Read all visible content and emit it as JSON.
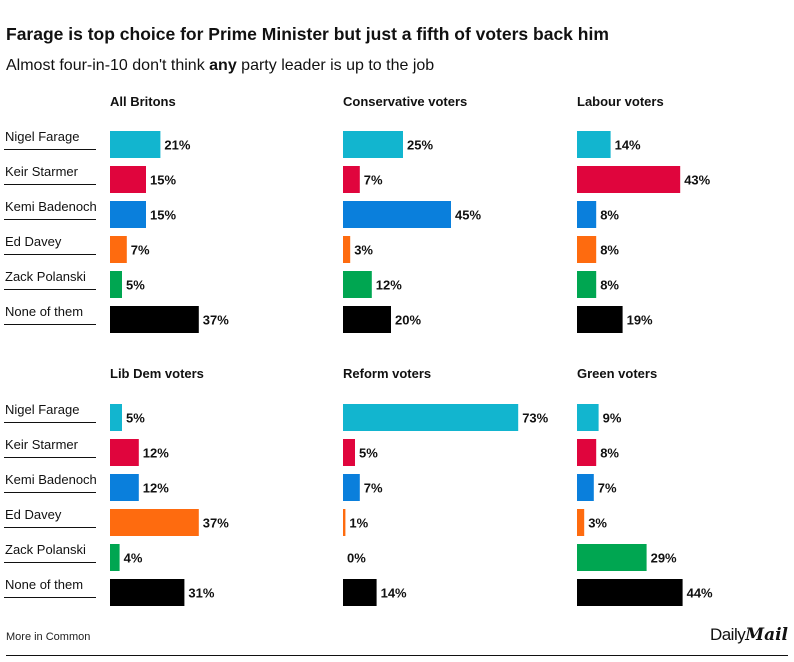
{
  "header": {
    "title": "Farage is top choice for Prime Minister but just a fifth of voters back him",
    "subtitle_pre": "Almost four-in-10 don't think ",
    "subtitle_bold": "any",
    "subtitle_post": " party leader is up to the job"
  },
  "footer": {
    "source": "More in Common",
    "logo_part1": "Daily",
    "logo_part2": "Mail"
  },
  "colors": {
    "Nigel Farage": "#12b5cf",
    "Keir Starmer": "#e0053d",
    "Kemi Badenoch": "#0a7fdc",
    "Ed Davey": "#fe6b0f",
    "Zack Polanski": "#00a651",
    "None of them": "#000000"
  },
  "chart_data": {
    "type": "bar",
    "orientation": "horizontal",
    "categories": [
      "Nigel Farage",
      "Keir Starmer",
      "Kemi Badenoch",
      "Ed Davey",
      "Zack Polanski",
      "None of them"
    ],
    "value_suffix": "%",
    "xlim": [
      0,
      100
    ],
    "panels": [
      {
        "title": "All Britons",
        "values": [
          21,
          15,
          15,
          7,
          5,
          37
        ]
      },
      {
        "title": "Conservative voters",
        "values": [
          25,
          7,
          45,
          3,
          12,
          20
        ]
      },
      {
        "title": "Labour voters",
        "values": [
          14,
          43,
          8,
          8,
          8,
          19
        ]
      },
      {
        "title": "Lib Dem voters",
        "values": [
          5,
          12,
          12,
          37,
          4,
          31
        ]
      },
      {
        "title": "Reform voters",
        "values": [
          73,
          5,
          7,
          1,
          0,
          14
        ]
      },
      {
        "title": "Green voters",
        "values": [
          9,
          8,
          7,
          3,
          29,
          44
        ]
      }
    ]
  }
}
